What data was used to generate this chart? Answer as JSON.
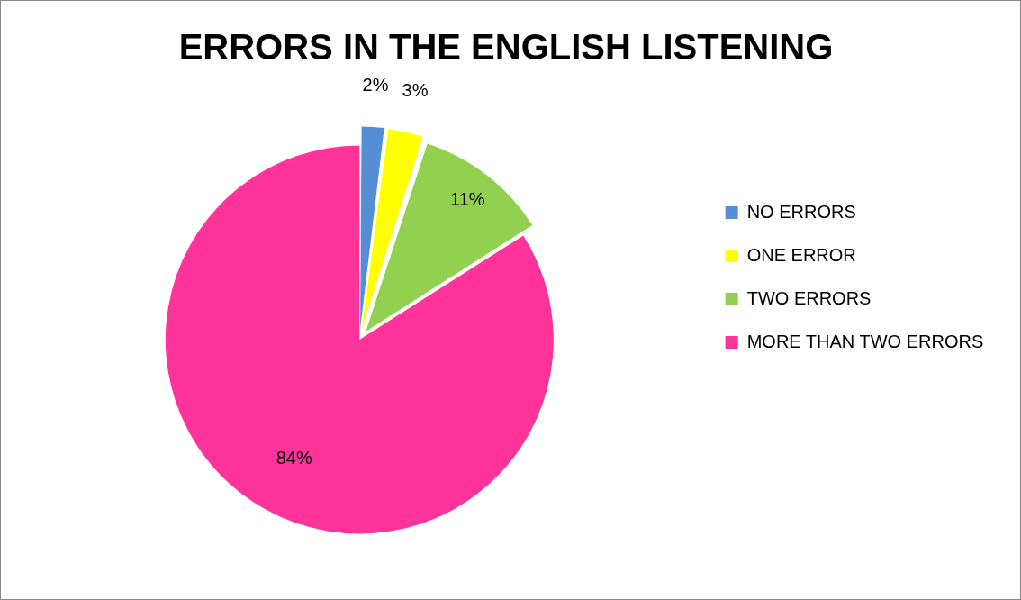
{
  "chart_data": {
    "type": "pie",
    "title": "ERRORS IN THE ENGLISH LISTENING",
    "categories": [
      "NO ERRORS",
      "ONE ERROR",
      "TWO ERRORS",
      "MORE THAN TWO ERRORS"
    ],
    "values": [
      2,
      3,
      11,
      84
    ],
    "colors": [
      "#558ed5",
      "#ffff00",
      "#92d050",
      "#ff3399"
    ],
    "value_labels": [
      "2%",
      "3%",
      "11%",
      "84%"
    ],
    "legend": "right"
  }
}
